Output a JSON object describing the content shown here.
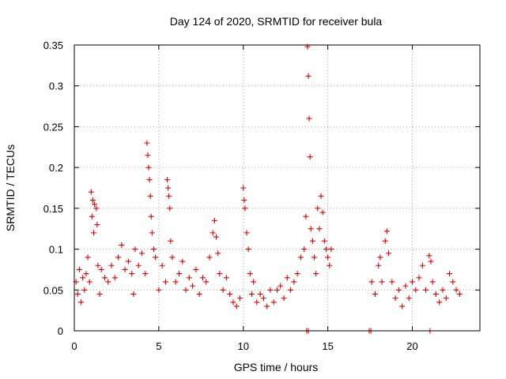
{
  "chart_data": {
    "type": "scatter",
    "title": "Day 124 of 2020, SRMTID for receiver bula",
    "xlabel": "GPS time / hours",
    "ylabel": "SRMTID / TECUs",
    "xlim": [
      0,
      24
    ],
    "ylim": [
      0,
      0.35
    ],
    "xticks": [
      0,
      5,
      10,
      15,
      20
    ],
    "xtick_labels": [
      "0",
      "5",
      "10",
      "15",
      "20"
    ],
    "yticks": [
      0,
      0.05,
      0.1,
      0.15,
      0.2,
      0.25,
      0.3,
      0.35
    ],
    "ytick_labels": [
      "0",
      "0.05",
      "0.1",
      "0.15",
      "0.2",
      "0.25",
      "0.3",
      "0.35"
    ],
    "grid": true,
    "marker": "+",
    "color": "#dd0000",
    "series": [
      {
        "name": "SRMTID",
        "points": [
          [
            0.1,
            0.06
          ],
          [
            0.2,
            0.045
          ],
          [
            0.3,
            0.075
          ],
          [
            0.4,
            0.035
          ],
          [
            0.5,
            0.065
          ],
          [
            0.6,
            0.05
          ],
          [
            0.7,
            0.07
          ],
          [
            0.8,
            0.09
          ],
          [
            0.9,
            0.06
          ],
          [
            1.0,
            0.17
          ],
          [
            1.05,
            0.14
          ],
          [
            1.1,
            0.16
          ],
          [
            1.15,
            0.12
          ],
          [
            1.2,
            0.155
          ],
          [
            1.3,
            0.15
          ],
          [
            1.35,
            0.13
          ],
          [
            1.4,
            0.08
          ],
          [
            1.5,
            0.045
          ],
          [
            1.6,
            0.075
          ],
          [
            1.8,
            0.065
          ],
          [
            2.0,
            0.06
          ],
          [
            2.2,
            0.08
          ],
          [
            2.4,
            0.065
          ],
          [
            2.6,
            0.09
          ],
          [
            2.8,
            0.105
          ],
          [
            3.0,
            0.075
          ],
          [
            3.2,
            0.085
          ],
          [
            3.4,
            0.07
          ],
          [
            3.5,
            0.045
          ],
          [
            3.6,
            0.1
          ],
          [
            3.8,
            0.08
          ],
          [
            4.0,
            0.095
          ],
          [
            4.2,
            0.07
          ],
          [
            4.3,
            0.23
          ],
          [
            4.35,
            0.215
          ],
          [
            4.4,
            0.2
          ],
          [
            4.45,
            0.185
          ],
          [
            4.5,
            0.165
          ],
          [
            4.55,
            0.14
          ],
          [
            4.6,
            0.12
          ],
          [
            4.7,
            0.1
          ],
          [
            4.8,
            0.09
          ],
          [
            5.0,
            0.05
          ],
          [
            5.2,
            0.08
          ],
          [
            5.4,
            0.06
          ],
          [
            5.5,
            0.185
          ],
          [
            5.55,
            0.175
          ],
          [
            5.6,
            0.165
          ],
          [
            5.65,
            0.15
          ],
          [
            5.7,
            0.11
          ],
          [
            5.8,
            0.09
          ],
          [
            6.0,
            0.06
          ],
          [
            6.2,
            0.07
          ],
          [
            6.4,
            0.085
          ],
          [
            6.6,
            0.05
          ],
          [
            6.8,
            0.065
          ],
          [
            7.0,
            0.055
          ],
          [
            7.2,
            0.075
          ],
          [
            7.4,
            0.045
          ],
          [
            7.6,
            0.065
          ],
          [
            7.8,
            0.06
          ],
          [
            8.0,
            0.09
          ],
          [
            8.2,
            0.12
          ],
          [
            8.3,
            0.135
          ],
          [
            8.4,
            0.115
          ],
          [
            8.5,
            0.095
          ],
          [
            8.6,
            0.07
          ],
          [
            8.8,
            0.05
          ],
          [
            9.0,
            0.065
          ],
          [
            9.2,
            0.045
          ],
          [
            9.4,
            0.035
          ],
          [
            9.6,
            0.03
          ],
          [
            9.8,
            0.04
          ],
          [
            10.0,
            0.175
          ],
          [
            10.05,
            0.16
          ],
          [
            10.1,
            0.15
          ],
          [
            10.2,
            0.12
          ],
          [
            10.3,
            0.1
          ],
          [
            10.4,
            0.07
          ],
          [
            10.5,
            0.045
          ],
          [
            10.6,
            0.06
          ],
          [
            10.8,
            0.035
          ],
          [
            11.0,
            0.045
          ],
          [
            11.2,
            0.04
          ],
          [
            11.4,
            0.03
          ],
          [
            11.6,
            0.05
          ],
          [
            11.8,
            0.035
          ],
          [
            12.0,
            0.05
          ],
          [
            12.2,
            0.055
          ],
          [
            12.4,
            0.04
          ],
          [
            12.6,
            0.065
          ],
          [
            12.8,
            0.05
          ],
          [
            13.0,
            0.06
          ],
          [
            13.2,
            0.07
          ],
          [
            13.4,
            0.09
          ],
          [
            13.6,
            0.1
          ],
          [
            13.7,
            0.14
          ],
          [
            13.8,
            0.348
          ],
          [
            13.85,
            0.312
          ],
          [
            13.9,
            0.26
          ],
          [
            13.95,
            0.213
          ],
          [
            14.0,
            0.125
          ],
          [
            14.1,
            0.11
          ],
          [
            14.2,
            0.09
          ],
          [
            14.3,
            0.07
          ],
          [
            14.4,
            0.15
          ],
          [
            14.5,
            0.125
          ],
          [
            14.6,
            0.165
          ],
          [
            14.7,
            0.145
          ],
          [
            14.8,
            0.11
          ],
          [
            14.9,
            0.1
          ],
          [
            15.0,
            0.09
          ],
          [
            15.1,
            0.08
          ],
          [
            15.2,
            0.1
          ],
          [
            17.6,
            0.06
          ],
          [
            17.8,
            0.045
          ],
          [
            18.0,
            0.08
          ],
          [
            18.1,
            0.09
          ],
          [
            18.2,
            0.06
          ],
          [
            18.4,
            0.11
          ],
          [
            18.5,
            0.122
          ],
          [
            18.6,
            0.095
          ],
          [
            18.8,
            0.06
          ],
          [
            19.0,
            0.04
          ],
          [
            19.2,
            0.05
          ],
          [
            19.4,
            0.03
          ],
          [
            19.6,
            0.055
          ],
          [
            19.8,
            0.04
          ],
          [
            20.0,
            0.06
          ],
          [
            20.2,
            0.05
          ],
          [
            20.4,
            0.065
          ],
          [
            20.6,
            0.08
          ],
          [
            20.8,
            0.05
          ],
          [
            21.0,
            0.092
          ],
          [
            21.1,
            0.085
          ],
          [
            21.2,
            0.06
          ],
          [
            21.4,
            0.045
          ],
          [
            21.6,
            0.035
          ],
          [
            21.8,
            0.05
          ],
          [
            22.0,
            0.04
          ],
          [
            22.2,
            0.07
          ],
          [
            22.4,
            0.06
          ],
          [
            22.6,
            0.05
          ],
          [
            22.8,
            0.045
          ]
        ],
        "zero_points": [
          13.75,
          13.85,
          17.45,
          17.55,
          21.05
        ]
      }
    ]
  }
}
